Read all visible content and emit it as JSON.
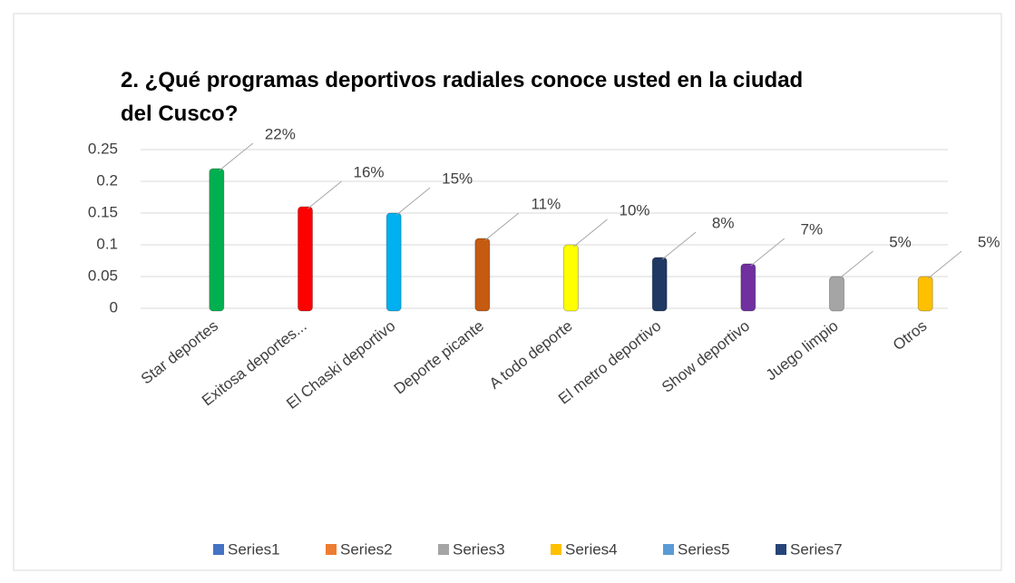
{
  "chart_data": {
    "type": "bar",
    "title": [
      "2. ¿Qué programas deportivos radiales conoce usted en la ciudad",
      "del Cusco?"
    ],
    "categories": [
      "Star deportes",
      "Exitosa deportes...",
      "El Chaski deportivo",
      "Deporte picante",
      "A todo deporte",
      "El metro deportivo",
      "Show deportivo",
      "Juego limpio",
      "Otros"
    ],
    "values": [
      0.22,
      0.16,
      0.15,
      0.11,
      0.1,
      0.08,
      0.07,
      0.05,
      0.05
    ],
    "value_labels": [
      "22%",
      "16%",
      "15%",
      "11%",
      "10%",
      "8%",
      "7%",
      "5%",
      "5%"
    ],
    "colors": [
      "#00b050",
      "#ff0000",
      "#00b0f0",
      "#c55a11",
      "#ffff00",
      "#1f3864",
      "#7030a0",
      "#a5a5a5",
      "#ffc000"
    ],
    "ylim": [
      0,
      0.25
    ],
    "yticks": [
      0,
      0.05,
      0.1,
      0.15,
      0.2,
      0.25
    ],
    "grid": true,
    "legend": [
      {
        "name": "Series1",
        "color": "#4472c4"
      },
      {
        "name": "Series2",
        "color": "#ed7d31"
      },
      {
        "name": "Series3",
        "color": "#a5a5a5"
      },
      {
        "name": "Series4",
        "color": "#ffc000"
      },
      {
        "name": "Series5",
        "color": "#5b9bd5"
      },
      {
        "name": "Series7",
        "color": "#264478"
      }
    ],
    "legend_position": "bottom"
  }
}
